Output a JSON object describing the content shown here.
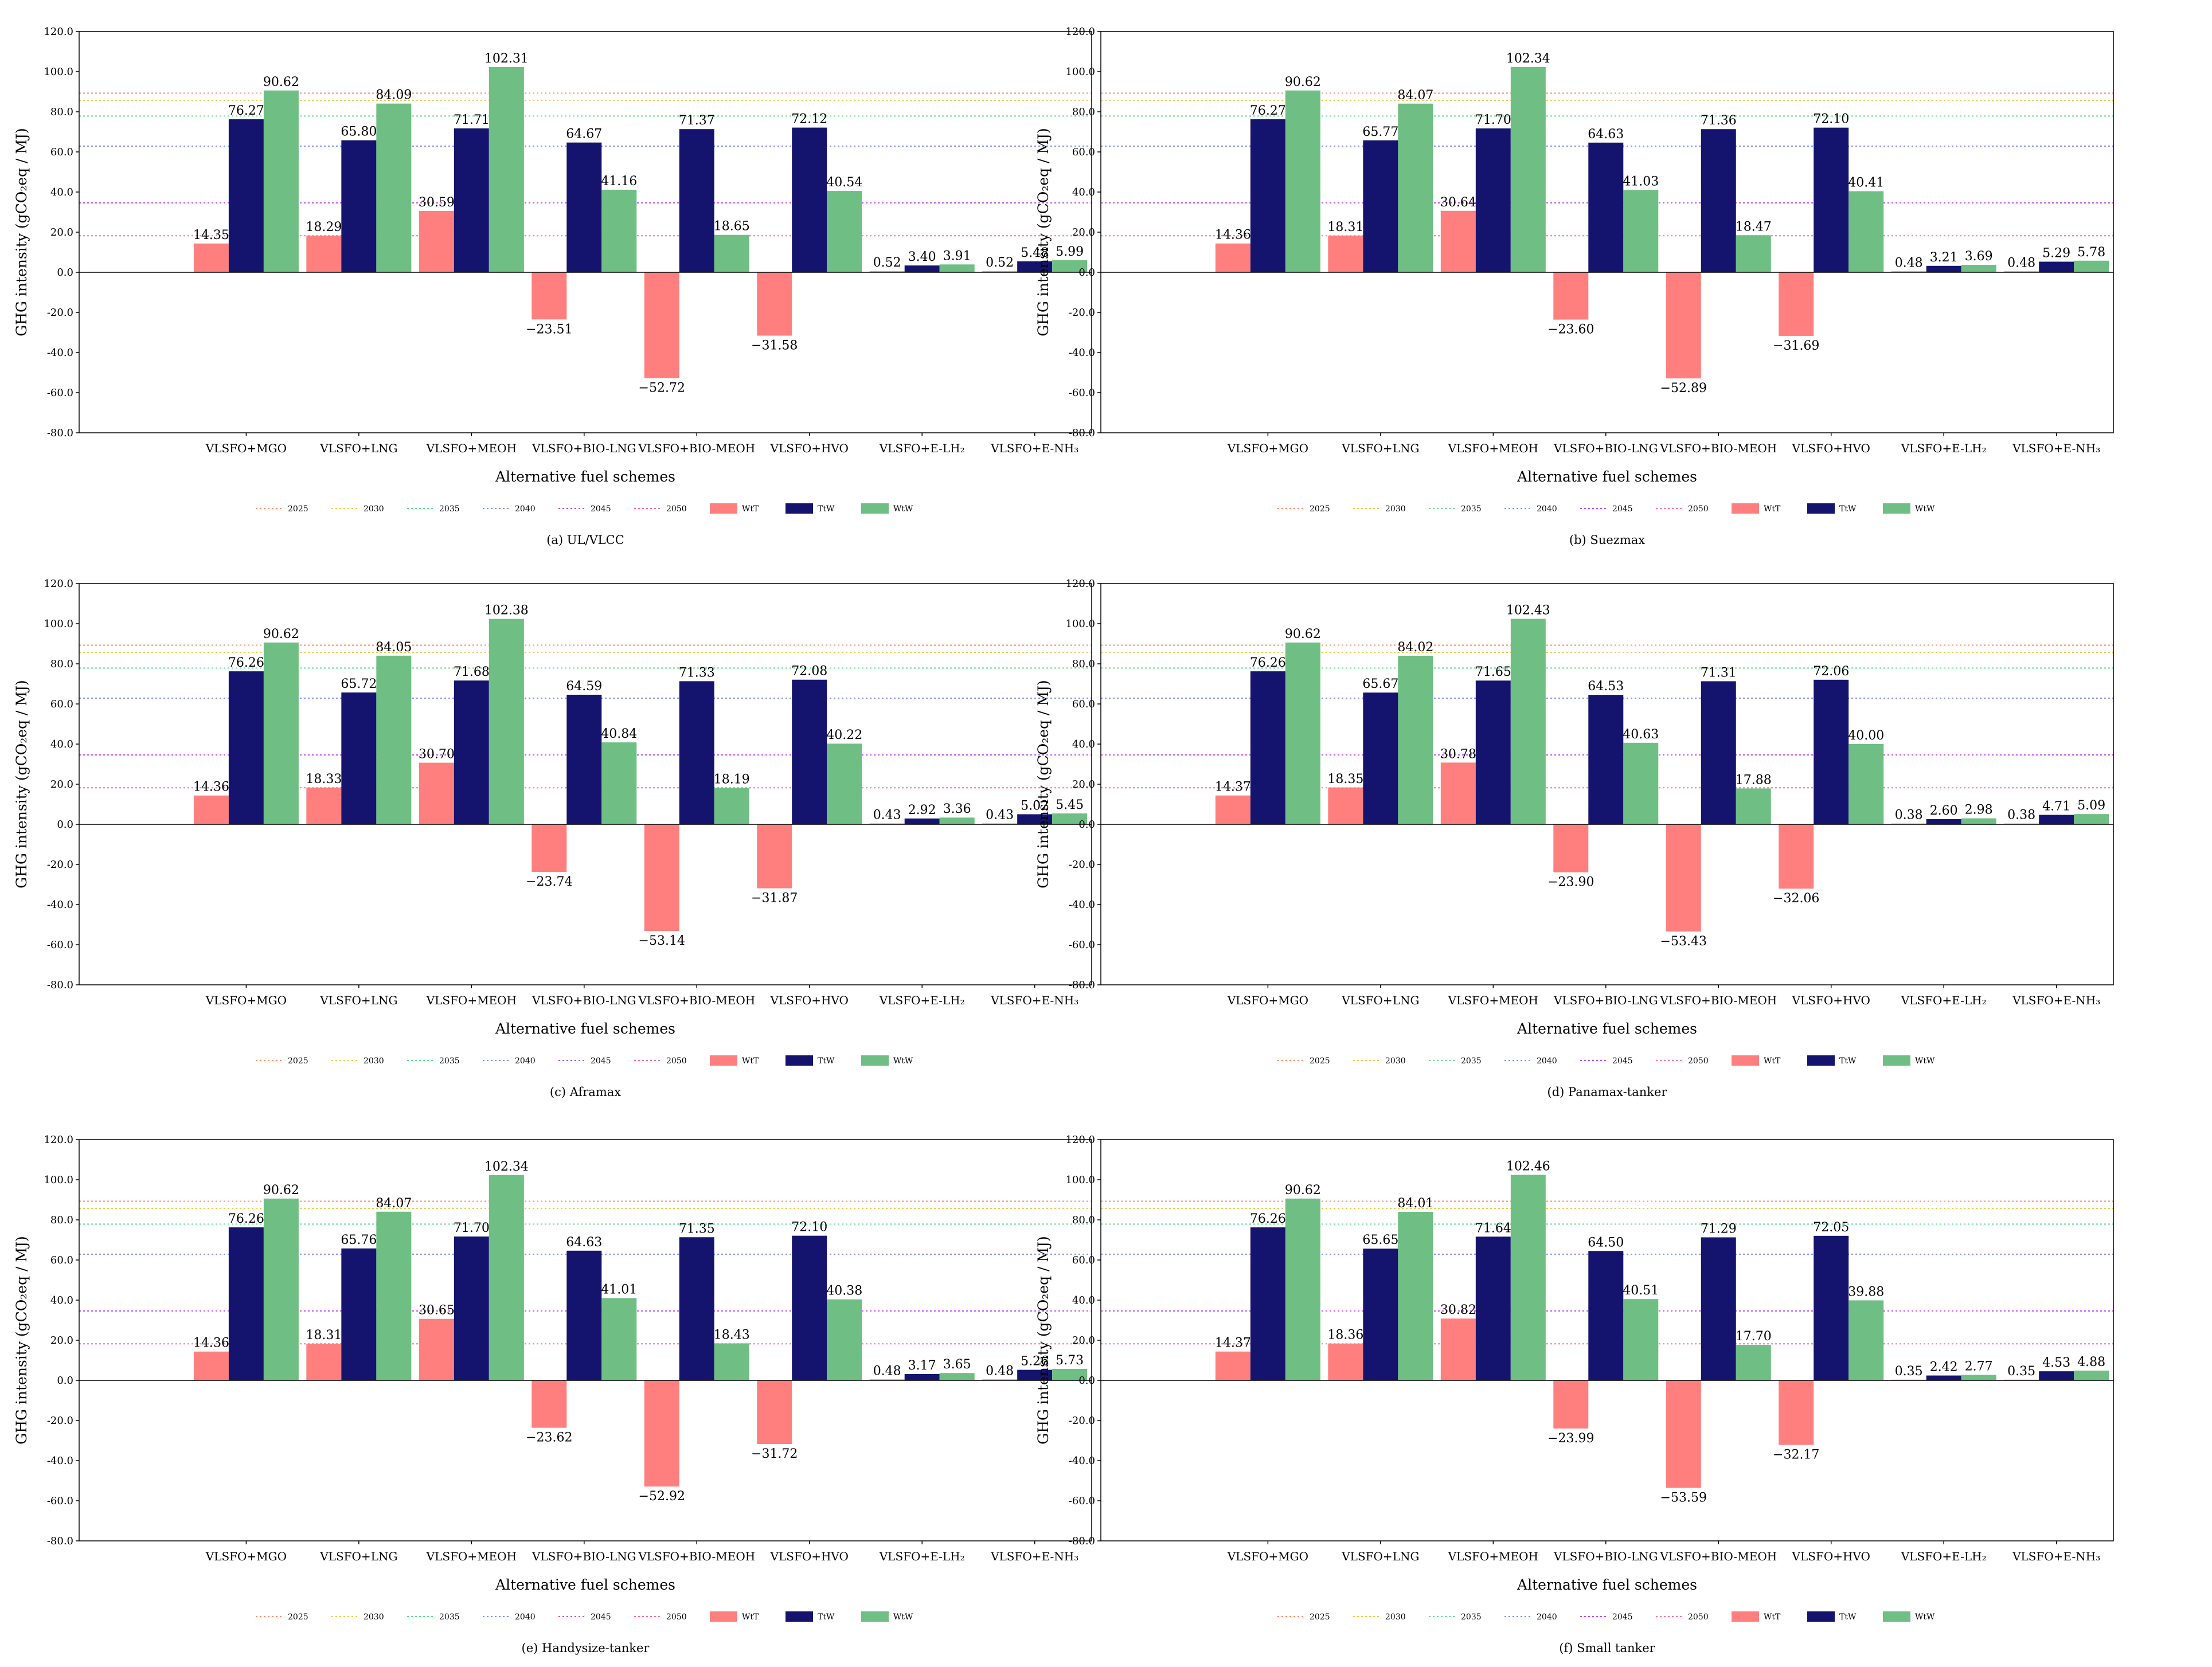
{
  "colors": {
    "WtT": "#ff7f7f",
    "TtW": "#14146e",
    "WtW": "#6fbe83",
    "ref_2025": "#ff8c69",
    "ref_2030": "#f2c84b",
    "ref_2035": "#5ddf94",
    "ref_2040": "#7b8cff",
    "ref_2045": "#c04bff",
    "ref_2050": "#ff6fa5",
    "axis": "#000000"
  },
  "chart_data": [
    {
      "id": "a",
      "type": "bar",
      "caption": "(a) UL/VLCC",
      "xlabel": "Alternative fuel schemes",
      "ylabel": "GHG intensity (gCO₂eq / MJ)",
      "ylim": [
        -80,
        120
      ],
      "yticks": [
        "120.0",
        "100.0",
        "80.0",
        "60.0",
        "40.0",
        "20.0",
        "0.0",
        "-20.0",
        "-40.0",
        "-60.0",
        "-80.0"
      ],
      "categories": [
        "VLSFO+MGO",
        "VLSFO+LNG",
        "VLSFO+MEOH",
        "VLSFO+BIO-LNG",
        "VLSFO+BIO-MEOH",
        "VLSFO+HVO",
        "VLSFO+E-LH₂",
        "VLSFO+E-NH₃"
      ],
      "series": [
        {
          "name": "WtT",
          "values": [
            14.35,
            18.29,
            30.59,
            -23.51,
            -52.72,
            -31.58,
            0.52,
            0.52
          ],
          "labels": [
            "14.35",
            "18.29",
            "30.59",
            "−23.51",
            "−52.72",
            "−31.58",
            "0.52",
            "0.52"
          ]
        },
        {
          "name": "TtW",
          "values": [
            76.27,
            65.8,
            71.71,
            64.67,
            71.37,
            72.12,
            3.4,
            5.48
          ],
          "labels": [
            "76.27",
            "65.80",
            "71.71",
            "64.67",
            "71.37",
            "72.12",
            "3.40",
            "5.48"
          ]
        },
        {
          "name": "WtW",
          "values": [
            90.62,
            84.09,
            102.31,
            41.16,
            18.65,
            40.54,
            3.91,
            5.99
          ],
          "labels": [
            "90.62",
            "84.09",
            "102.31",
            "41.16",
            "18.65",
            "40.54",
            "3.91",
            "5.99"
          ]
        }
      ],
      "reference_lines": [
        {
          "name": "2025",
          "value": 89.3
        },
        {
          "name": "2030",
          "value": 85.7
        },
        {
          "name": "2035",
          "value": 77.9
        },
        {
          "name": "2040",
          "value": 62.9
        },
        {
          "name": "2045",
          "value": 34.6
        },
        {
          "name": "2050",
          "value": 18.2
        }
      ],
      "legend": [
        "2025",
        "2030",
        "2035",
        "2040",
        "2045",
        "2050",
        "WtT",
        "TtW",
        "WtW"
      ]
    },
    {
      "id": "b",
      "type": "bar",
      "caption": "(b) Suezmax",
      "xlabel": "Alternative fuel schemes",
      "ylabel": "GHG intensity (gCO₂eq / MJ)",
      "ylim": [
        -80,
        120
      ],
      "yticks": [
        "120.0",
        "100.0",
        "80.0",
        "60.0",
        "40.0",
        "20.0",
        "0.0",
        "-20.0",
        "-40.0",
        "-60.0",
        "-80.0"
      ],
      "categories": [
        "VLSFO+MGO",
        "VLSFO+LNG",
        "VLSFO+MEOH",
        "VLSFO+BIO-LNG",
        "VLSFO+BIO-MEOH",
        "VLSFO+HVO",
        "VLSFO+E-LH₂",
        "VLSFO+E-NH₃"
      ],
      "series": [
        {
          "name": "WtT",
          "values": [
            14.36,
            18.31,
            30.64,
            -23.6,
            -52.89,
            -31.69,
            0.48,
            0.48
          ],
          "labels": [
            "14.36",
            "18.31",
            "30.64",
            "−23.60",
            "−52.89",
            "−31.69",
            "0.48",
            "0.48"
          ]
        },
        {
          "name": "TtW",
          "values": [
            76.27,
            65.77,
            71.7,
            64.63,
            71.36,
            72.1,
            3.21,
            5.29
          ],
          "labels": [
            "76.27",
            "65.77",
            "71.70",
            "64.63",
            "71.36",
            "72.10",
            "3.21",
            "5.29"
          ]
        },
        {
          "name": "WtW",
          "values": [
            90.62,
            84.07,
            102.34,
            41.03,
            18.47,
            40.41,
            3.69,
            5.78
          ],
          "labels": [
            "90.62",
            "84.07",
            "102.34",
            "41.03",
            "18.47",
            "40.41",
            "3.69",
            "5.78"
          ]
        }
      ],
      "reference_lines": [
        {
          "name": "2025",
          "value": 89.3
        },
        {
          "name": "2030",
          "value": 85.7
        },
        {
          "name": "2035",
          "value": 77.9
        },
        {
          "name": "2040",
          "value": 62.9
        },
        {
          "name": "2045",
          "value": 34.6
        },
        {
          "name": "2050",
          "value": 18.2
        }
      ],
      "legend": [
        "2025",
        "2030",
        "2035",
        "2040",
        "2045",
        "2050",
        "WtT",
        "TtW",
        "WtW"
      ]
    },
    {
      "id": "c",
      "type": "bar",
      "caption": "(c) Aframax",
      "xlabel": "Alternative fuel schemes",
      "ylabel": "GHG intensity (gCO₂eq / MJ)",
      "ylim": [
        -80,
        120
      ],
      "yticks": [
        "120.0",
        "100.0",
        "80.0",
        "60.0",
        "40.0",
        "20.0",
        "0.0",
        "-20.0",
        "-40.0",
        "-60.0",
        "-80.0"
      ],
      "categories": [
        "VLSFO+MGO",
        "VLSFO+LNG",
        "VLSFO+MEOH",
        "VLSFO+BIO-LNG",
        "VLSFO+BIO-MEOH",
        "VLSFO+HVO",
        "VLSFO+E-LH₂",
        "VLSFO+E-NH₃"
      ],
      "series": [
        {
          "name": "WtT",
          "values": [
            14.36,
            18.33,
            30.7,
            -23.74,
            -53.14,
            -31.87,
            0.43,
            0.43
          ],
          "labels": [
            "14.36",
            "18.33",
            "30.70",
            "−23.74",
            "−53.14",
            "−31.87",
            "0.43",
            "0.43"
          ]
        },
        {
          "name": "TtW",
          "values": [
            76.26,
            65.72,
            71.68,
            64.59,
            71.33,
            72.08,
            2.92,
            5.02
          ],
          "labels": [
            "76.26",
            "65.72",
            "71.68",
            "64.59",
            "71.33",
            "72.08",
            "2.92",
            "5.02"
          ]
        },
        {
          "name": "WtW",
          "values": [
            90.62,
            84.05,
            102.38,
            40.84,
            18.19,
            40.22,
            3.36,
            5.45
          ],
          "labels": [
            "90.62",
            "84.05",
            "102.38",
            "40.84",
            "18.19",
            "40.22",
            "3.36",
            "5.45"
          ]
        }
      ],
      "reference_lines": [
        {
          "name": "2025",
          "value": 89.3
        },
        {
          "name": "2030",
          "value": 85.7
        },
        {
          "name": "2035",
          "value": 77.9
        },
        {
          "name": "2040",
          "value": 62.9
        },
        {
          "name": "2045",
          "value": 34.6
        },
        {
          "name": "2050",
          "value": 18.2
        }
      ],
      "legend": [
        "2025",
        "2030",
        "2035",
        "2040",
        "2045",
        "2050",
        "WtT",
        "TtW",
        "WtW"
      ]
    },
    {
      "id": "d",
      "type": "bar",
      "caption": "(d) Panamax-tanker",
      "xlabel": "Alternative fuel schemes",
      "ylabel": "GHG intensity (gCO₂eq / MJ)",
      "ylim": [
        -80,
        120
      ],
      "yticks": [
        "120.0",
        "100.0",
        "80.0",
        "60.0",
        "40.0",
        "20.0",
        "0.0",
        "-20.0",
        "-40.0",
        "-60.0",
        "-80.0"
      ],
      "categories": [
        "VLSFO+MGO",
        "VLSFO+LNG",
        "VLSFO+MEOH",
        "VLSFO+BIO-LNG",
        "VLSFO+BIO-MEOH",
        "VLSFO+HVO",
        "VLSFO+E-LH₂",
        "VLSFO+E-NH₃"
      ],
      "series": [
        {
          "name": "WtT",
          "values": [
            14.37,
            18.35,
            30.78,
            -23.9,
            -53.43,
            -32.06,
            0.38,
            0.38
          ],
          "labels": [
            "14.37",
            "18.35",
            "30.78",
            "−23.90",
            "−53.43",
            "−32.06",
            "0.38",
            "0.38"
          ]
        },
        {
          "name": "TtW",
          "values": [
            76.26,
            65.67,
            71.65,
            64.53,
            71.31,
            72.06,
            2.6,
            4.71
          ],
          "labels": [
            "76.26",
            "65.67",
            "71.65",
            "64.53",
            "71.31",
            "72.06",
            "2.60",
            "4.71"
          ]
        },
        {
          "name": "WtW",
          "values": [
            90.62,
            84.02,
            102.43,
            40.63,
            17.88,
            40.0,
            2.98,
            5.09
          ],
          "labels": [
            "90.62",
            "84.02",
            "102.43",
            "40.63",
            "17.88",
            "40.00",
            "2.98",
            "5.09"
          ]
        }
      ],
      "reference_lines": [
        {
          "name": "2025",
          "value": 89.3
        },
        {
          "name": "2030",
          "value": 85.7
        },
        {
          "name": "2035",
          "value": 77.9
        },
        {
          "name": "2040",
          "value": 62.9
        },
        {
          "name": "2045",
          "value": 34.6
        },
        {
          "name": "2050",
          "value": 18.2
        }
      ],
      "legend": [
        "2025",
        "2030",
        "2035",
        "2040",
        "2045",
        "2050",
        "WtT",
        "TtW",
        "WtW"
      ]
    },
    {
      "id": "e",
      "type": "bar",
      "caption": "(e) Handysize-tanker",
      "xlabel": "Alternative fuel schemes",
      "ylabel": "GHG intensity (gCO₂eq / MJ)",
      "ylim": [
        -80,
        120
      ],
      "yticks": [
        "120.0",
        "100.0",
        "80.0",
        "60.0",
        "40.0",
        "20.0",
        "0.0",
        "-20.0",
        "-40.0",
        "-60.0",
        "-80.0"
      ],
      "categories": [
        "VLSFO+MGO",
        "VLSFO+LNG",
        "VLSFO+MEOH",
        "VLSFO+BIO-LNG",
        "VLSFO+BIO-MEOH",
        "VLSFO+HVO",
        "VLSFO+E-LH₂",
        "VLSFO+E-NH₃"
      ],
      "series": [
        {
          "name": "WtT",
          "values": [
            14.36,
            18.31,
            30.65,
            -23.62,
            -52.92,
            -31.72,
            0.48,
            0.48
          ],
          "labels": [
            "14.36",
            "18.31",
            "30.65",
            "−23.62",
            "−52.92",
            "−31.72",
            "0.48",
            "0.48"
          ]
        },
        {
          "name": "TtW",
          "values": [
            76.26,
            65.76,
            71.7,
            64.63,
            71.35,
            72.1,
            3.17,
            5.26
          ],
          "labels": [
            "76.26",
            "65.76",
            "71.70",
            "64.63",
            "71.35",
            "72.10",
            "3.17",
            "5.26"
          ]
        },
        {
          "name": "WtW",
          "values": [
            90.62,
            84.07,
            102.34,
            41.01,
            18.43,
            40.38,
            3.65,
            5.73
          ],
          "labels": [
            "90.62",
            "84.07",
            "102.34",
            "41.01",
            "18.43",
            "40.38",
            "3.65",
            "5.73"
          ]
        }
      ],
      "reference_lines": [
        {
          "name": "2025",
          "value": 89.3
        },
        {
          "name": "2030",
          "value": 85.7
        },
        {
          "name": "2035",
          "value": 77.9
        },
        {
          "name": "2040",
          "value": 62.9
        },
        {
          "name": "2045",
          "value": 34.6
        },
        {
          "name": "2050",
          "value": 18.2
        }
      ],
      "legend": [
        "2025",
        "2030",
        "2035",
        "2040",
        "2045",
        "2050",
        "WtT",
        "TtW",
        "WtW"
      ]
    },
    {
      "id": "f",
      "type": "bar",
      "caption": "(f) Small tanker",
      "xlabel": "Alternative fuel schemes",
      "ylabel": "GHG intensity (gCO₂eq / MJ)",
      "ylim": [
        -80,
        120
      ],
      "yticks": [
        "120.0",
        "100.0",
        "80.0",
        "60.0",
        "40.0",
        "20.0",
        "0.0",
        "-20.0",
        "-40.0",
        "-60.0",
        "-80.0"
      ],
      "categories": [
        "VLSFO+MGO",
        "VLSFO+LNG",
        "VLSFO+MEOH",
        "VLSFO+BIO-LNG",
        "VLSFO+BIO-MEOH",
        "VLSFO+HVO",
        "VLSFO+E-LH₂",
        "VLSFO+E-NH₃"
      ],
      "series": [
        {
          "name": "WtT",
          "values": [
            14.37,
            18.36,
            30.82,
            -23.99,
            -53.59,
            -32.17,
            0.35,
            0.35
          ],
          "labels": [
            "14.37",
            "18.36",
            "30.82",
            "−23.99",
            "−53.59",
            "−32.17",
            "0.35",
            "0.35"
          ]
        },
        {
          "name": "TtW",
          "values": [
            76.26,
            65.65,
            71.64,
            64.5,
            71.29,
            72.05,
            2.42,
            4.53
          ],
          "labels": [
            "76.26",
            "65.65",
            "71.64",
            "64.50",
            "71.29",
            "72.05",
            "2.42",
            "4.53"
          ]
        },
        {
          "name": "WtW",
          "values": [
            90.62,
            84.01,
            102.46,
            40.51,
            17.7,
            39.88,
            2.77,
            4.88
          ],
          "labels": [
            "90.62",
            "84.01",
            "102.46",
            "40.51",
            "17.70",
            "39.88",
            "2.77",
            "4.88"
          ]
        }
      ],
      "reference_lines": [
        {
          "name": "2025",
          "value": 89.3
        },
        {
          "name": "2030",
          "value": 85.7
        },
        {
          "name": "2035",
          "value": 77.9
        },
        {
          "name": "2040",
          "value": 62.9
        },
        {
          "name": "2045",
          "value": 34.6
        },
        {
          "name": "2050",
          "value": 18.2
        }
      ],
      "legend": [
        "2025",
        "2030",
        "2035",
        "2040",
        "2045",
        "2050",
        "WtT",
        "TtW",
        "WtW"
      ]
    }
  ]
}
